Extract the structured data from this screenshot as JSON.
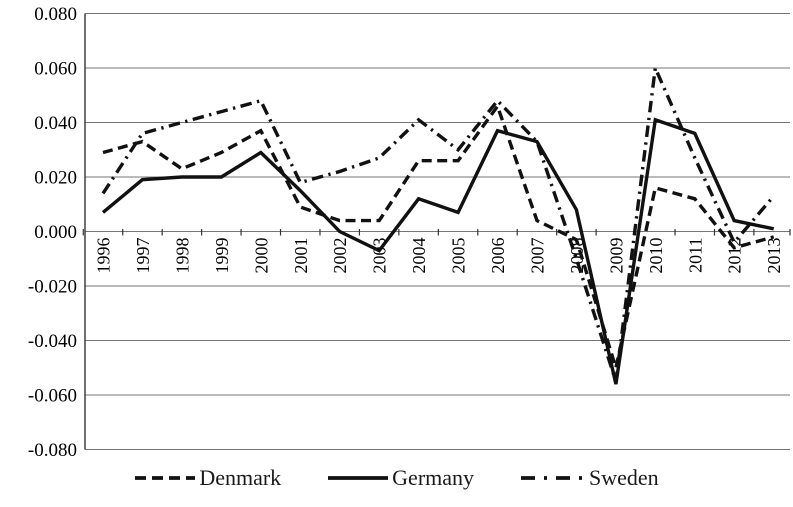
{
  "chart_data": {
    "type": "line",
    "title": "",
    "xlabel": "",
    "ylabel": "",
    "categories": [
      "1996",
      "1997",
      "1998",
      "1999",
      "2000",
      "2001",
      "2002",
      "2003",
      "2004",
      "2005",
      "2006",
      "2007",
      "2008",
      "2009",
      "2010",
      "2011",
      "2012",
      "2013"
    ],
    "series": [
      {
        "name": "Denmark",
        "line_style": "dashed",
        "values": [
          0.029,
          0.033,
          0.023,
          0.029,
          0.037,
          0.009,
          0.004,
          0.004,
          0.026,
          0.026,
          0.046,
          0.004,
          -0.003,
          -0.05,
          0.016,
          0.012,
          -0.006,
          -0.002
        ]
      },
      {
        "name": "Germany",
        "line_style": "solid",
        "values": [
          0.007,
          0.019,
          0.02,
          0.02,
          0.029,
          0.015,
          0.0,
          -0.007,
          0.012,
          0.007,
          0.037,
          0.033,
          0.008,
          -0.056,
          0.041,
          0.036,
          0.004,
          0.001
        ]
      },
      {
        "name": "Sweden",
        "line_style": "dash-dot",
        "values": [
          0.014,
          0.036,
          0.04,
          0.044,
          0.048,
          0.018,
          0.022,
          0.027,
          0.041,
          0.03,
          0.048,
          0.033,
          -0.01,
          -0.055,
          0.06,
          0.027,
          -0.004,
          0.013
        ]
      }
    ],
    "ylim": [
      -0.08,
      0.08
    ],
    "y_ticks": [
      {
        "value": 0.08,
        "label": "0.080"
      },
      {
        "value": 0.06,
        "label": "0.060"
      },
      {
        "value": 0.04,
        "label": "0.040"
      },
      {
        "value": 0.02,
        "label": "0.020"
      },
      {
        "value": 0.0,
        "label": "0.000"
      },
      {
        "value": -0.02,
        "label": "-0.020"
      },
      {
        "value": -0.04,
        "label": "-0.040"
      },
      {
        "value": -0.06,
        "label": "-0.060"
      },
      {
        "value": -0.08,
        "label": "-0.080"
      }
    ],
    "grid": "horizontal",
    "legend_position": "bottom",
    "line_color": "#111111",
    "grid_color": "#757575",
    "axis_color": "#333333"
  }
}
